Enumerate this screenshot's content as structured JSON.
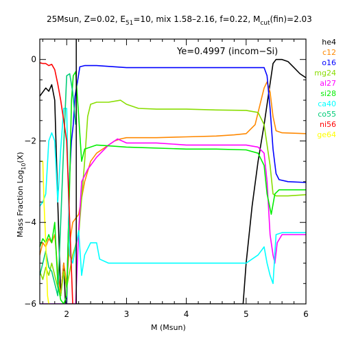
{
  "chart_data": {
    "type": "line",
    "title": "25Msun, Z=0.02, E51=10, mix 1.58–2.16, f=0.22, Mcut(fin)=2.03",
    "title_parts": {
      "a": "25Msun, Z=0.02, E",
      "b": "51",
      "c": "=10, mix 1.58–2.16, f=0.22, M",
      "d": "cut",
      "e": "(fin)=2.03"
    },
    "xlabel": "M (Msun)",
    "ylabel": "Mass Fraction Log",
    "ylabel_sub": "10",
    "ylabel_tail": "(X)",
    "annotation": "Ye=0.4997 (incom−Si)",
    "xlim": [
      1.55,
      6.0
    ],
    "ylim": [
      -6.0,
      0.5
    ],
    "xticks": [
      2,
      3,
      4,
      5,
      6
    ],
    "yticks": [
      0,
      -2,
      -4,
      -6
    ],
    "ytick_labels": [
      "0",
      "−2",
      "−4",
      "−6"
    ],
    "vline_x": 2.16,
    "legend_position": "right-outside",
    "series": [
      {
        "name": "he4",
        "color": "#000000",
        "points": [
          [
            1.55,
            -0.9
          ],
          [
            1.6,
            -0.8
          ],
          [
            1.65,
            -0.7
          ],
          [
            1.7,
            -0.78
          ],
          [
            1.75,
            -0.62
          ],
          [
            1.8,
            -1.0
          ],
          [
            1.85,
            -3.5
          ],
          [
            1.9,
            -5.8
          ],
          [
            1.95,
            -5.0
          ],
          [
            1.98,
            -6.0
          ],
          [
            4.95,
            -6.0
          ],
          [
            5.0,
            -5.0
          ],
          [
            5.1,
            -3.6
          ],
          [
            5.2,
            -2.5
          ],
          [
            5.3,
            -1.6
          ],
          [
            5.38,
            -0.8
          ],
          [
            5.45,
            -0.1
          ],
          [
            5.5,
            0.0
          ],
          [
            5.6,
            0.0
          ],
          [
            5.7,
            -0.05
          ],
          [
            5.8,
            -0.2
          ],
          [
            5.9,
            -0.35
          ],
          [
            6.0,
            -0.45
          ]
        ]
      },
      {
        "name": "c12",
        "color": "#ff8800",
        "points": [
          [
            1.55,
            -4.8
          ],
          [
            1.6,
            -4.5
          ],
          [
            1.65,
            -4.6
          ],
          [
            1.7,
            -4.4
          ],
          [
            1.75,
            -4.5
          ],
          [
            1.8,
            -4.3
          ],
          [
            1.85,
            -5.2
          ],
          [
            1.9,
            -5.8
          ],
          [
            1.95,
            -5.0
          ],
          [
            2.0,
            -5.5
          ],
          [
            2.05,
            -4.5
          ],
          [
            2.1,
            -4.0
          ],
          [
            2.2,
            -3.8
          ],
          [
            2.3,
            -3.0
          ],
          [
            2.4,
            -2.5
          ],
          [
            2.5,
            -2.3
          ],
          [
            2.6,
            -2.2
          ],
          [
            2.7,
            -2.1
          ],
          [
            2.8,
            -2.0
          ],
          [
            2.9,
            -1.95
          ],
          [
            3.0,
            -1.92
          ],
          [
            3.5,
            -1.92
          ],
          [
            4.0,
            -1.9
          ],
          [
            4.5,
            -1.88
          ],
          [
            4.8,
            -1.85
          ],
          [
            5.0,
            -1.82
          ],
          [
            5.15,
            -1.6
          ],
          [
            5.25,
            -1.0
          ],
          [
            5.3,
            -0.7
          ],
          [
            5.35,
            -0.55
          ],
          [
            5.4,
            -0.8
          ],
          [
            5.45,
            -1.4
          ],
          [
            5.5,
            -1.75
          ],
          [
            5.6,
            -1.8
          ],
          [
            6.0,
            -1.82
          ]
        ]
      },
      {
        "name": "o16",
        "color": "#0000ff",
        "points": [
          [
            1.55,
            -6.0
          ],
          [
            2.0,
            -6.0
          ],
          [
            2.05,
            -2.8
          ],
          [
            2.08,
            -2.0
          ],
          [
            2.11,
            -1.6
          ],
          [
            2.14,
            -0.9
          ],
          [
            2.18,
            -0.55
          ],
          [
            2.22,
            -0.18
          ],
          [
            2.3,
            -0.15
          ],
          [
            2.5,
            -0.15
          ],
          [
            3.0,
            -0.2
          ],
          [
            4.0,
            -0.2
          ],
          [
            5.0,
            -0.2
          ],
          [
            5.3,
            -0.2
          ],
          [
            5.35,
            -0.4
          ],
          [
            5.4,
            -1.2
          ],
          [
            5.45,
            -2.2
          ],
          [
            5.5,
            -2.8
          ],
          [
            5.55,
            -2.95
          ],
          [
            5.7,
            -3.0
          ],
          [
            6.0,
            -3.02
          ]
        ]
      },
      {
        "name": "mg24",
        "color": "#88dd00",
        "points": [
          [
            1.55,
            -5.2
          ],
          [
            1.6,
            -5.4
          ],
          [
            1.65,
            -5.1
          ],
          [
            1.7,
            -5.3
          ],
          [
            1.75,
            -5.0
          ],
          [
            1.8,
            -5.3
          ],
          [
            1.85,
            -5.6
          ],
          [
            1.9,
            -5.8
          ],
          [
            1.95,
            -5.2
          ],
          [
            2.0,
            -5.6
          ],
          [
            2.1,
            -4.8
          ],
          [
            2.2,
            -4.3
          ],
          [
            2.3,
            -2.5
          ],
          [
            2.35,
            -1.4
          ],
          [
            2.4,
            -1.1
          ],
          [
            2.5,
            -1.05
          ],
          [
            2.7,
            -1.05
          ],
          [
            2.9,
            -1.0
          ],
          [
            3.0,
            -1.1
          ],
          [
            3.2,
            -1.2
          ],
          [
            3.5,
            -1.22
          ],
          [
            4.0,
            -1.22
          ],
          [
            4.5,
            -1.24
          ],
          [
            5.0,
            -1.25
          ],
          [
            5.2,
            -1.3
          ],
          [
            5.3,
            -1.6
          ],
          [
            5.4,
            -2.6
          ],
          [
            5.45,
            -3.3
          ],
          [
            5.5,
            -3.35
          ],
          [
            5.7,
            -3.35
          ],
          [
            6.0,
            -3.32
          ]
        ]
      },
      {
        "name": "al27",
        "color": "#ff00ff",
        "points": [
          [
            1.55,
            -6.0
          ],
          [
            2.15,
            -6.0
          ],
          [
            2.2,
            -4.2
          ],
          [
            2.25,
            -3.0
          ],
          [
            2.35,
            -2.7
          ],
          [
            2.5,
            -2.4
          ],
          [
            2.7,
            -2.1
          ],
          [
            2.85,
            -1.95
          ],
          [
            3.0,
            -2.05
          ],
          [
            3.5,
            -2.05
          ],
          [
            4.0,
            -2.1
          ],
          [
            4.5,
            -2.1
          ],
          [
            5.0,
            -2.1
          ],
          [
            5.2,
            -2.15
          ],
          [
            5.3,
            -2.3
          ],
          [
            5.35,
            -3.0
          ],
          [
            5.4,
            -4.3
          ],
          [
            5.45,
            -4.8
          ],
          [
            5.48,
            -5.0
          ],
          [
            5.52,
            -4.5
          ],
          [
            5.6,
            -4.3
          ],
          [
            6.0,
            -4.3
          ]
        ]
      },
      {
        "name": "si28",
        "color": "#00ee00",
        "points": [
          [
            1.55,
            -4.6
          ],
          [
            1.6,
            -4.4
          ],
          [
            1.65,
            -4.5
          ],
          [
            1.7,
            -4.3
          ],
          [
            1.75,
            -4.5
          ],
          [
            1.8,
            -4.0
          ],
          [
            1.85,
            -5.5
          ],
          [
            1.9,
            -5.9
          ],
          [
            1.95,
            -6.0
          ],
          [
            2.0,
            -5.8
          ],
          [
            2.05,
            -3.0
          ],
          [
            2.08,
            -1.0
          ],
          [
            2.11,
            -0.4
          ],
          [
            2.15,
            -0.3
          ],
          [
            2.2,
            -1.4
          ],
          [
            2.25,
            -2.5
          ],
          [
            2.3,
            -2.2
          ],
          [
            2.5,
            -2.1
          ],
          [
            2.7,
            -2.12
          ],
          [
            3.0,
            -2.15
          ],
          [
            4.0,
            -2.2
          ],
          [
            4.5,
            -2.2
          ],
          [
            5.0,
            -2.22
          ],
          [
            5.2,
            -2.3
          ],
          [
            5.3,
            -2.6
          ],
          [
            5.35,
            -3.3
          ],
          [
            5.42,
            -3.8
          ],
          [
            5.48,
            -3.3
          ],
          [
            5.55,
            -3.2
          ],
          [
            6.0,
            -3.2
          ]
        ]
      },
      {
        "name": "ca40",
        "color": "#00ffff",
        "points": [
          [
            1.55,
            -3.6
          ],
          [
            1.6,
            -3.5
          ],
          [
            1.65,
            -3.3
          ],
          [
            1.7,
            -2.0
          ],
          [
            1.75,
            -1.8
          ],
          [
            1.8,
            -2.0
          ],
          [
            1.85,
            -3.5
          ],
          [
            1.9,
            -2.2
          ],
          [
            1.95,
            -1.2
          ],
          [
            2.0,
            -1.2
          ],
          [
            2.05,
            -4.8
          ],
          [
            2.1,
            -5.0
          ],
          [
            2.2,
            -4.2
          ],
          [
            2.25,
            -5.3
          ],
          [
            2.3,
            -4.8
          ],
          [
            2.4,
            -4.5
          ],
          [
            2.5,
            -4.5
          ],
          [
            2.55,
            -4.9
          ],
          [
            2.7,
            -5.0
          ],
          [
            3.0,
            -5.0
          ],
          [
            4.0,
            -5.0
          ],
          [
            5.0,
            -5.0
          ],
          [
            5.2,
            -4.8
          ],
          [
            5.3,
            -4.6
          ],
          [
            5.35,
            -5.0
          ],
          [
            5.4,
            -5.3
          ],
          [
            5.45,
            -5.5
          ],
          [
            5.5,
            -4.3
          ],
          [
            5.6,
            -4.25
          ],
          [
            6.0,
            -4.25
          ]
        ]
      },
      {
        "name": "co55",
        "color": "#00cc77",
        "points": [
          [
            1.55,
            -5.3
          ],
          [
            1.6,
            -5.0
          ],
          [
            1.65,
            -4.7
          ],
          [
            1.7,
            -5.1
          ],
          [
            1.75,
            -5.2
          ],
          [
            1.8,
            -5.5
          ],
          [
            1.85,
            -5.8
          ],
          [
            1.9,
            -4.0
          ],
          [
            1.95,
            -2.1
          ],
          [
            2.0,
            -0.4
          ],
          [
            2.05,
            -0.35
          ],
          [
            2.1,
            -0.8
          ],
          [
            2.15,
            -1.6
          ]
        ]
      },
      {
        "name": "ni56",
        "color": "#ff0000",
        "points": [
          [
            1.55,
            -0.08
          ],
          [
            1.6,
            -0.1
          ],
          [
            1.65,
            -0.1
          ],
          [
            1.7,
            -0.15
          ],
          [
            1.75,
            -0.12
          ],
          [
            1.8,
            -0.25
          ],
          [
            1.85,
            -0.6
          ],
          [
            1.9,
            -1.0
          ],
          [
            1.95,
            -1.5
          ],
          [
            2.0,
            -2.0
          ],
          [
            2.05,
            -4.0
          ],
          [
            2.1,
            -6.0
          ]
        ]
      },
      {
        "name": "ge64",
        "color": "#ffff00",
        "points": [
          [
            1.55,
            -2.5
          ],
          [
            1.6,
            -2.5
          ],
          [
            1.62,
            -3.5
          ],
          [
            1.65,
            -4.5
          ],
          [
            1.68,
            -5.8
          ],
          [
            1.7,
            -6.0
          ]
        ]
      }
    ]
  }
}
